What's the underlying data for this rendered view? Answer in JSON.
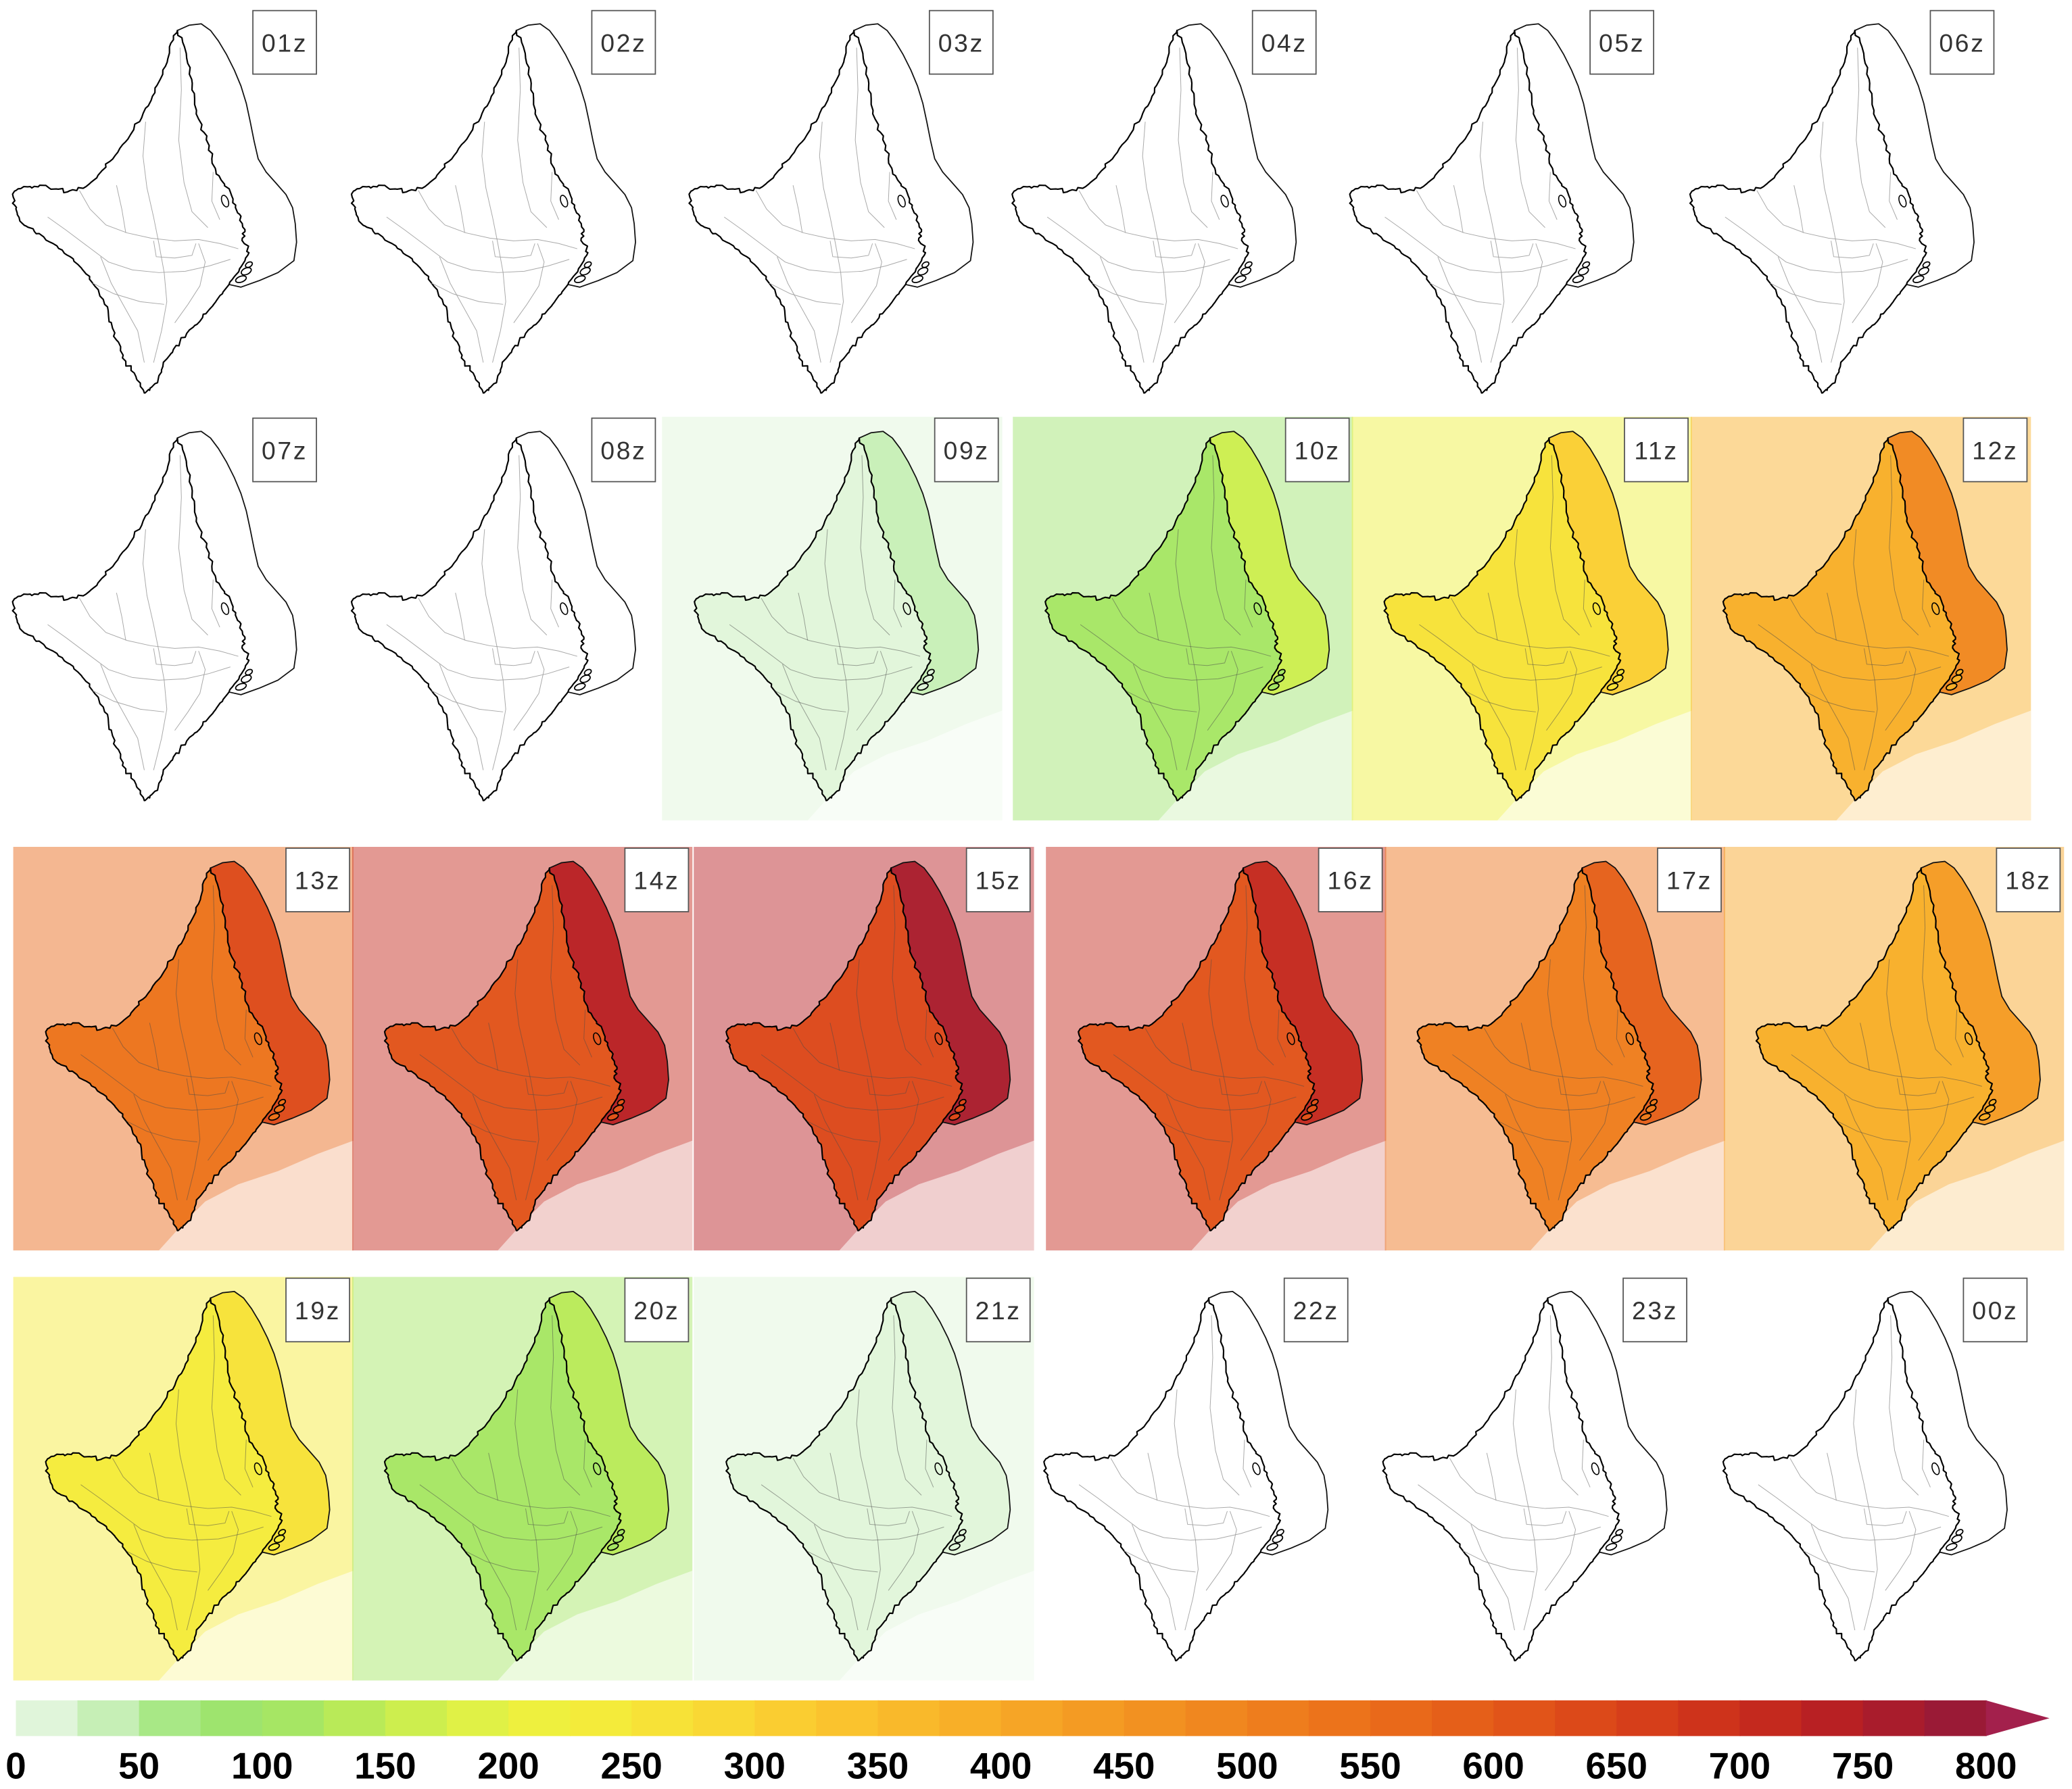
{
  "figure": {
    "panels": [
      {
        "label": "01z",
        "land": null,
        "ocean": null,
        "background": null
      },
      {
        "label": "02z",
        "land": null,
        "ocean": null,
        "background": null
      },
      {
        "label": "03z",
        "land": null,
        "ocean": null,
        "background": null
      },
      {
        "label": "04z",
        "land": null,
        "ocean": null,
        "background": null
      },
      {
        "label": "05z",
        "land": null,
        "ocean": null,
        "background": null
      },
      {
        "label": "06z",
        "land": null,
        "ocean": null,
        "background": null
      },
      {
        "label": "07z",
        "land": null,
        "ocean": null,
        "background": null
      },
      {
        "label": "08z",
        "land": null,
        "ocean": null,
        "background": null
      },
      {
        "label": "09z",
        "land": 15,
        "ocean": 40,
        "background": 10
      },
      {
        "label": "10z",
        "land": 100,
        "ocean": 170,
        "background": 90
      },
      {
        "label": "11z",
        "land": 255,
        "ocean": 305,
        "background": 220
      },
      {
        "label": "12z",
        "land": 390,
        "ocean": 480,
        "background": 390
      },
      {
        "label": "13z",
        "land": 530,
        "ocean": 640,
        "background": 560
      },
      {
        "label": "14z",
        "land": 610,
        "ocean": 730,
        "background": 700
      },
      {
        "label": "15z",
        "land": 625,
        "ocean": 760,
        "background": 730
      },
      {
        "label": "16z",
        "land": 615,
        "ocean": 720,
        "background": 700
      },
      {
        "label": "17z",
        "land": 515,
        "ocean": 590,
        "background": 540
      },
      {
        "label": "18z",
        "land": 375,
        "ocean": 440,
        "background": 400
      },
      {
        "label": "19z",
        "land": 240,
        "ocean": 260,
        "background": 230
      },
      {
        "label": "20z",
        "land": 100,
        "ocean": 130,
        "background": 110
      },
      {
        "label": "21z",
        "land": 15,
        "ocean": 20,
        "background": 10
      },
      {
        "label": "22z",
        "land": null,
        "ocean": null,
        "background": null
      },
      {
        "label": "23z",
        "land": null,
        "ocean": null,
        "background": null
      },
      {
        "label": "00z",
        "land": null,
        "ocean": null,
        "background": null
      }
    ],
    "colorbar": {
      "min": 0,
      "max": 800,
      "step": 25,
      "extends_above_max": true,
      "ticks": [
        "0",
        "50",
        "100",
        "150",
        "200",
        "250",
        "300",
        "350",
        "400",
        "450",
        "500",
        "550",
        "600",
        "650",
        "700",
        "750",
        "800"
      ],
      "colors": [
        "#e0f5da",
        "#c6efb6",
        "#a8e886",
        "#9ee46e",
        "#a6e664",
        "#b9ea58",
        "#cdee4e",
        "#e0f146",
        "#eef03e",
        "#f4eb3a",
        "#f7e237",
        "#f9d834",
        "#facd31",
        "#fac32e",
        "#f9b92b",
        "#f8af28",
        "#f6a526",
        "#f49b23",
        "#f29121",
        "#f0871f",
        "#ee7d1d",
        "#ec731b",
        "#e9691a",
        "#e55f19",
        "#e15419",
        "#dc4919",
        "#d63e1a",
        "#ce331b",
        "#c4291e",
        "#b82023",
        "#a91c2c",
        "#9a1a36",
        "#a3204c"
      ]
    }
  }
}
